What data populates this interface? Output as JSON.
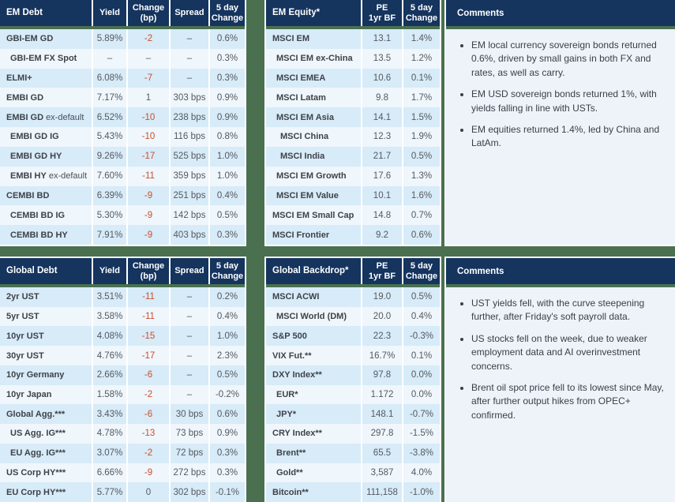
{
  "colors": {
    "header_bg": "#15345e",
    "accent_green": "#4a7050",
    "row_dark": "#d7ebf8",
    "row_light": "#eff6fc",
    "comments_bg": "#edf3f9",
    "negative_change": "#c94f2b"
  },
  "panels": {
    "em_debt": {
      "title": "EM Debt",
      "columns": [
        "Yield",
        "Change\n(bp)",
        "Spread",
        "5 day\nChange"
      ],
      "keys": [
        "yield",
        "change-bp",
        "spread",
        "5day-change"
      ],
      "red_value_index": 1,
      "rows": [
        {
          "label": "GBI-EM GD",
          "indent": 0,
          "values": [
            "5.89%",
            "-2",
            "–",
            "0.6%"
          ]
        },
        {
          "label": "GBI-EM FX Spot",
          "indent": 1,
          "values": [
            "–",
            "–",
            "–",
            "0.3%"
          ]
        },
        {
          "label": "ELMI+",
          "indent": 0,
          "values": [
            "6.08%",
            "-7",
            "–",
            "0.3%"
          ]
        },
        {
          "label": "EMBI GD",
          "indent": 0,
          "values": [
            "7.17%",
            "1",
            "303 bps",
            "0.9%"
          ]
        },
        {
          "label": "EMBI GD",
          "suffix": "ex-default",
          "indent": 0,
          "values": [
            "6.52%",
            "-10",
            "238 bps",
            "0.9%"
          ]
        },
        {
          "label": "EMBI GD IG",
          "indent": 1,
          "values": [
            "5.43%",
            "-10",
            "116 bps",
            "0.8%"
          ]
        },
        {
          "label": "EMBI GD HY",
          "indent": 1,
          "values": [
            "9.26%",
            "-17",
            "525 bps",
            "1.0%"
          ]
        },
        {
          "label": "EMBI HY",
          "suffix": "ex-default",
          "indent": 1,
          "values": [
            "7.60%",
            "-11",
            "359 bps",
            "1.0%"
          ]
        },
        {
          "label": "CEMBI BD",
          "indent": 0,
          "values": [
            "6.39%",
            "-9",
            "251 bps",
            "0.4%"
          ]
        },
        {
          "label": "CEMBI BD IG",
          "indent": 1,
          "values": [
            "5.30%",
            "-9",
            "142 bps",
            "0.5%"
          ]
        },
        {
          "label": "CEMBI BD HY",
          "indent": 1,
          "values": [
            "7.91%",
            "-9",
            "403 bps",
            "0.3%"
          ]
        }
      ]
    },
    "em_equity": {
      "title": "EM Equity*",
      "columns": [
        "PE\n1yr BF",
        "5 day\nChange"
      ],
      "keys": [
        "pe-1yr-bf",
        "5day-change"
      ],
      "red_value_index": null,
      "rows": [
        {
          "label": "MSCI EM",
          "indent": 0,
          "values": [
            "13.1",
            "1.4%"
          ]
        },
        {
          "label": "MSCI EM ex-China",
          "indent": 1,
          "values": [
            "13.5",
            "1.2%"
          ]
        },
        {
          "label": "MSCI EMEA",
          "indent": 1,
          "values": [
            "10.6",
            "0.1%"
          ]
        },
        {
          "label": "MSCI Latam",
          "indent": 1,
          "values": [
            "9.8",
            "1.7%"
          ]
        },
        {
          "label": "MSCI EM Asia",
          "indent": 1,
          "values": [
            "14.1",
            "1.5%"
          ]
        },
        {
          "label": "MSCI China",
          "indent": 2,
          "values": [
            "12.3",
            "1.9%"
          ]
        },
        {
          "label": "MSCI India",
          "indent": 2,
          "values": [
            "21.7",
            "0.5%"
          ]
        },
        {
          "label": "MSCI EM Growth",
          "indent": 1,
          "values": [
            "17.6",
            "1.3%"
          ]
        },
        {
          "label": "MSCI EM Value",
          "indent": 1,
          "values": [
            "10.1",
            "1.6%"
          ]
        },
        {
          "label": "MSCI EM Small Cap",
          "indent": 0,
          "values": [
            "14.8",
            "0.7%"
          ]
        },
        {
          "label": "MSCI Frontier",
          "indent": 0,
          "values": [
            "9.2",
            "0.6%"
          ]
        }
      ]
    },
    "comments_top": {
      "title": "Comments",
      "bullets": [
        "EM local currency sovereign bonds returned 0.6%, driven by small gains in both FX and rates, as well as carry.",
        "EM USD sovereign bonds returned 1%, with yields falling in line with USTs.",
        "EM equities returned 1.4%, led by China and LatAm."
      ]
    },
    "global_debt": {
      "title": "Global Debt",
      "columns": [
        "Yield",
        "Change\n(bp)",
        "Spread",
        "5 day\nChange"
      ],
      "keys": [
        "yield",
        "change-bp",
        "spread",
        "5day-change"
      ],
      "red_value_index": 1,
      "rows": [
        {
          "label": "2yr UST",
          "indent": 0,
          "values": [
            "3.51%",
            "-11",
            "–",
            "0.2%"
          ]
        },
        {
          "label": "5yr UST",
          "indent": 0,
          "values": [
            "3.58%",
            "-11",
            "–",
            "0.4%"
          ]
        },
        {
          "label": "10yr UST",
          "indent": 0,
          "values": [
            "4.08%",
            "-15",
            "–",
            "1.0%"
          ]
        },
        {
          "label": "30yr UST",
          "indent": 0,
          "values": [
            "4.76%",
            "-17",
            "–",
            "2.3%"
          ]
        },
        {
          "label": "10yr Germany",
          "indent": 0,
          "values": [
            "2.66%",
            "-6",
            "–",
            "0.5%"
          ]
        },
        {
          "label": "10yr Japan",
          "indent": 0,
          "values": [
            "1.58%",
            "-2",
            "–",
            "-0.2%"
          ]
        },
        {
          "label": "Global Agg.***",
          "indent": 0,
          "values": [
            "3.43%",
            "-6",
            "30 bps",
            "0.6%"
          ]
        },
        {
          "label": "US Agg. IG***",
          "indent": 1,
          "values": [
            "4.78%",
            "-13",
            "73 bps",
            "0.9%"
          ]
        },
        {
          "label": "EU Agg. IG***",
          "indent": 1,
          "values": [
            "3.07%",
            "-2",
            "72 bps",
            "0.3%"
          ]
        },
        {
          "label": "US Corp HY***",
          "indent": 0,
          "values": [
            "6.66%",
            "-9",
            "272 bps",
            "0.3%"
          ]
        },
        {
          "label": "EU Corp HY***",
          "indent": 0,
          "values": [
            "5.77%",
            "0",
            "302 bps",
            "-0.1%"
          ]
        }
      ]
    },
    "global_backdrop": {
      "title": "Global Backdrop*",
      "columns": [
        "PE\n1yr BF",
        "5 day\nChange"
      ],
      "keys": [
        "pe-1yr-bf",
        "5day-change"
      ],
      "red_value_index": null,
      "rows": [
        {
          "label": "MSCI ACWI",
          "indent": 0,
          "values": [
            "19.0",
            "0.5%"
          ]
        },
        {
          "label": "MSCI World (DM)",
          "indent": 1,
          "values": [
            "20.0",
            "0.4%"
          ]
        },
        {
          "label": "S&P 500",
          "indent": 0,
          "values": [
            "22.3",
            "-0.3%"
          ]
        },
        {
          "label": "VIX Fut.**",
          "indent": 0,
          "values": [
            "16.7%",
            "0.1%"
          ]
        },
        {
          "label": "DXY Index**",
          "indent": 0,
          "values": [
            "97.8",
            "0.0%"
          ]
        },
        {
          "label": "EUR*",
          "indent": 1,
          "values": [
            "1.172",
            "0.0%"
          ]
        },
        {
          "label": "JPY*",
          "indent": 1,
          "values": [
            "148.1",
            "-0.7%"
          ]
        },
        {
          "label": "CRY Index**",
          "indent": 0,
          "values": [
            "297.8",
            "-1.5%"
          ]
        },
        {
          "label": "Brent**",
          "indent": 1,
          "values": [
            "65.5",
            "-3.8%"
          ]
        },
        {
          "label": "Gold**",
          "indent": 1,
          "values": [
            "3,587",
            "4.0%"
          ]
        },
        {
          "label": "Bitcoin**",
          "indent": 0,
          "values": [
            "111,158",
            "-1.0%"
          ]
        }
      ]
    },
    "comments_bottom": {
      "title": "Comments",
      "bullets": [
        "UST yields fell, with the curve steepening further, after Friday's soft payroll data.",
        "US stocks fell on the week, due to weaker employment data and AI overinvestment concerns.",
        "Brent oil spot price fell to its lowest since May, after further output hikes from OPEC+ confirmed."
      ]
    }
  }
}
